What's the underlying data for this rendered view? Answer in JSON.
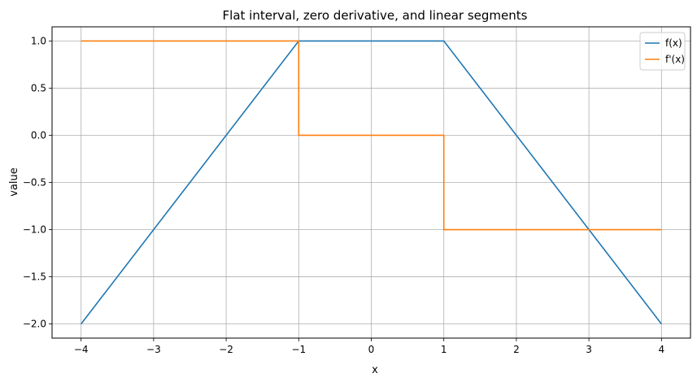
{
  "chart_data": {
    "type": "line",
    "title": "Flat interval, zero derivative, and linear segments",
    "xlabel": "x",
    "ylabel": "value",
    "xlim": [
      -4.4,
      4.4
    ],
    "ylim": [
      -2.15,
      1.15
    ],
    "x_ticks": [
      -4,
      -3,
      -2,
      -1,
      0,
      1,
      2,
      3,
      4
    ],
    "x_tick_labels": [
      "−4",
      "−3",
      "−2",
      "−1",
      "0",
      "1",
      "2",
      "3",
      "4"
    ],
    "y_ticks": [
      -2.0,
      -1.5,
      -1.0,
      -0.5,
      0.0,
      0.5,
      1.0
    ],
    "y_tick_labels": [
      "−2.0",
      "−1.5",
      "−1.0",
      "−0.5",
      "0.0",
      "0.5",
      "1.0"
    ],
    "grid": true,
    "legend_position": "top-right",
    "series": [
      {
        "name": "f(x)",
        "color": "#1f77b4",
        "x": [
          -4,
          -1,
          1,
          4
        ],
        "y": [
          -2,
          1,
          1,
          -2
        ]
      },
      {
        "name": "f'(x)",
        "color": "#ff7f0e",
        "x": [
          -4,
          -1,
          -1,
          1,
          1,
          4
        ],
        "y": [
          1,
          1,
          0,
          0,
          -1,
          -1
        ]
      }
    ]
  }
}
